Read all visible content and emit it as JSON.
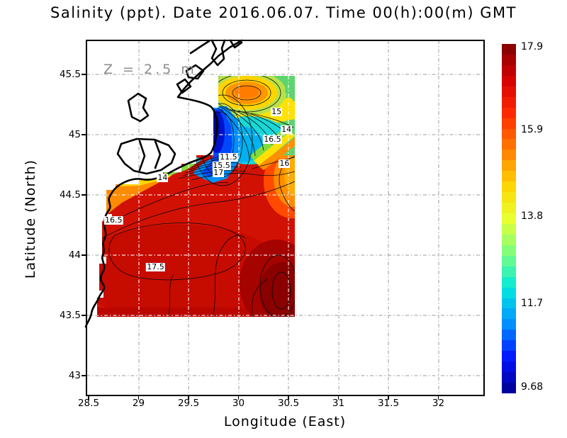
{
  "chart_data": {
    "type": "heatmap",
    "subtype": "filled-contour-map",
    "variable": "Salinity",
    "units": "ppt",
    "depth_label": "Z = 2.5 m",
    "date": "2016.06.07",
    "time": "00(h):00(m) GMT",
    "title": "Salinity (ppt). Date 2016.06.07. Time 00(h):00(m) GMT",
    "xlabel": "Longitude (East)",
    "ylabel": "Latitude (North)",
    "xlim": [
      28.48,
      32.44
    ],
    "ylim": [
      42.83,
      45.78
    ],
    "xticks": [
      28.5,
      29,
      29.5,
      30,
      30.5,
      31,
      31.5,
      32
    ],
    "xtick_labels": [
      "28.5",
      "29",
      "29.5",
      "30",
      "30.5",
      "31",
      "31.5",
      "32"
    ],
    "yticks": [
      45.5,
      45,
      44.5,
      44,
      43.5,
      43
    ],
    "ytick_labels": [
      "45.5",
      "45",
      "44.5",
      "44",
      "43.5",
      "43"
    ],
    "grid": true,
    "data_extent": {
      "lon": [
        28.62,
        30.56
      ],
      "lat": [
        43.48,
        45.49
      ]
    },
    "colorbar": {
      "min": 9.68,
      "max": 17.9,
      "ticks": [
        17.9,
        15.9,
        13.8,
        11.7,
        9.68
      ],
      "tick_labels": [
        "17.9",
        "15.9",
        "13.8",
        "11.7",
        "9.68"
      ],
      "n_segments": 33,
      "colormap": "jet",
      "jet_stops": [
        "#00008f",
        "#0013ff",
        "#0093ff",
        "#00e8e0",
        "#7bff7e",
        "#e8ff30",
        "#ffd200",
        "#ff7a00",
        "#ff2a00",
        "#d40000",
        "#7f0000"
      ]
    },
    "contour_labels": [
      {
        "text": "15",
        "lon": 30.38,
        "lat": 45.19
      },
      {
        "text": "14",
        "lon": 30.48,
        "lat": 45.04
      },
      {
        "text": "16.5",
        "lon": 30.34,
        "lat": 44.96
      },
      {
        "text": "16",
        "lon": 30.46,
        "lat": 44.76
      },
      {
        "text": "11.5",
        "lon": 29.9,
        "lat": 44.81
      },
      {
        "text": "15.5",
        "lon": 29.83,
        "lat": 44.74
      },
      {
        "text": "17",
        "lon": 29.8,
        "lat": 44.68
      },
      {
        "text": "14",
        "lon": 29.24,
        "lat": 44.64
      },
      {
        "text": "16.5",
        "lon": 28.75,
        "lat": 44.29
      },
      {
        "text": "17.5",
        "lon": 29.17,
        "lat": 43.9
      }
    ],
    "features": [
      {
        "name": "salinity-minimum-plume",
        "description": "Low salinity river plume (~9.7-12 ppt, dark blue) hugging the coast near the Danube mouth",
        "lon": 29.8,
        "lat": 45.0
      },
      {
        "name": "salinity-maximum",
        "description": "Maximum salinity core (~17.9 ppt, dark red)",
        "lon": 30.45,
        "lat": 43.7
      },
      {
        "name": "local-maximum-north",
        "description": "Local high (~15.5 ppt orange blob) ringed by contours",
        "lon": 30.08,
        "lat": 45.35
      },
      {
        "name": "offshore-high-salinity",
        "description": "Broad red area 16.5-17.5 ppt covering the southern part of the data field",
        "lon": 29.5,
        "lat": 44.0
      }
    ]
  }
}
